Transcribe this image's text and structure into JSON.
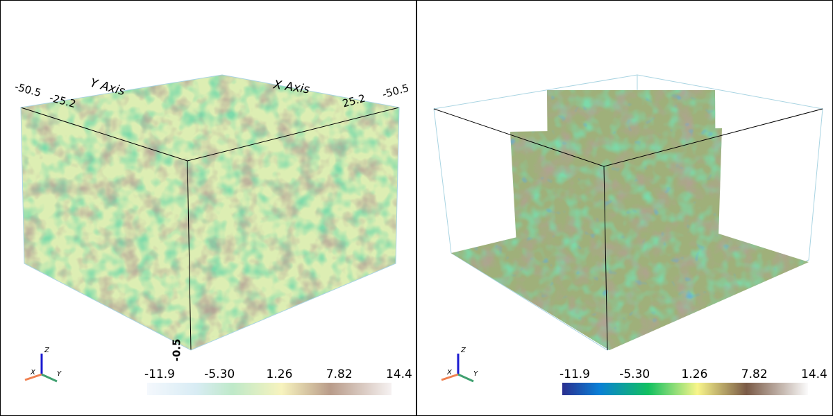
{
  "panels": [
    {
      "axis_labels": [
        "Y Axis",
        "X Axis"
      ],
      "tick_labels": [
        "-50.5",
        "-25.2",
        "25.2",
        "-50.5",
        "-0.5"
      ],
      "colorbar": {
        "labels": [
          "-11.9",
          "-5.30",
          "1.26",
          "7.82",
          "14.4"
        ]
      },
      "orientation": [
        "X",
        "Y",
        "Z"
      ]
    },
    {
      "colorbar": {
        "labels": [
          "-11.9",
          "-5.30",
          "1.26",
          "7.82",
          "14.4"
        ]
      },
      "orientation": [
        "X",
        "Y",
        "Z"
      ]
    }
  ]
}
